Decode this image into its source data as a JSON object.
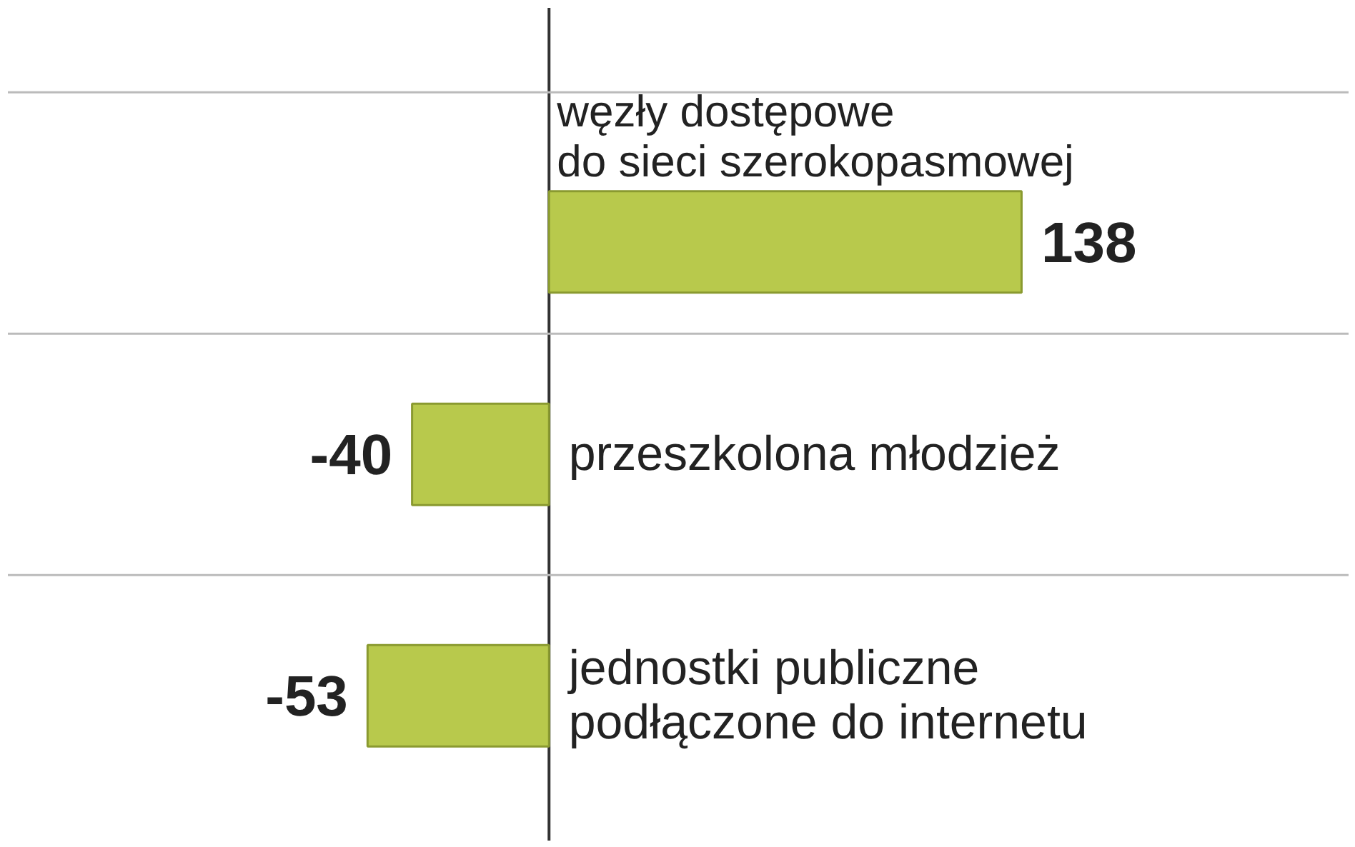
{
  "chart_data": {
    "type": "bar",
    "orientation": "horizontal",
    "categories": [
      "węzły dostępowe\ndo sieci szerokopasmowej",
      "przeszkolona młodzież",
      "jednostki publiczne\npodłączone do internetu"
    ],
    "values": [
      138,
      -40,
      -53
    ],
    "color": "#b8c94c",
    "data_labels": true,
    "grid": "y"
  }
}
